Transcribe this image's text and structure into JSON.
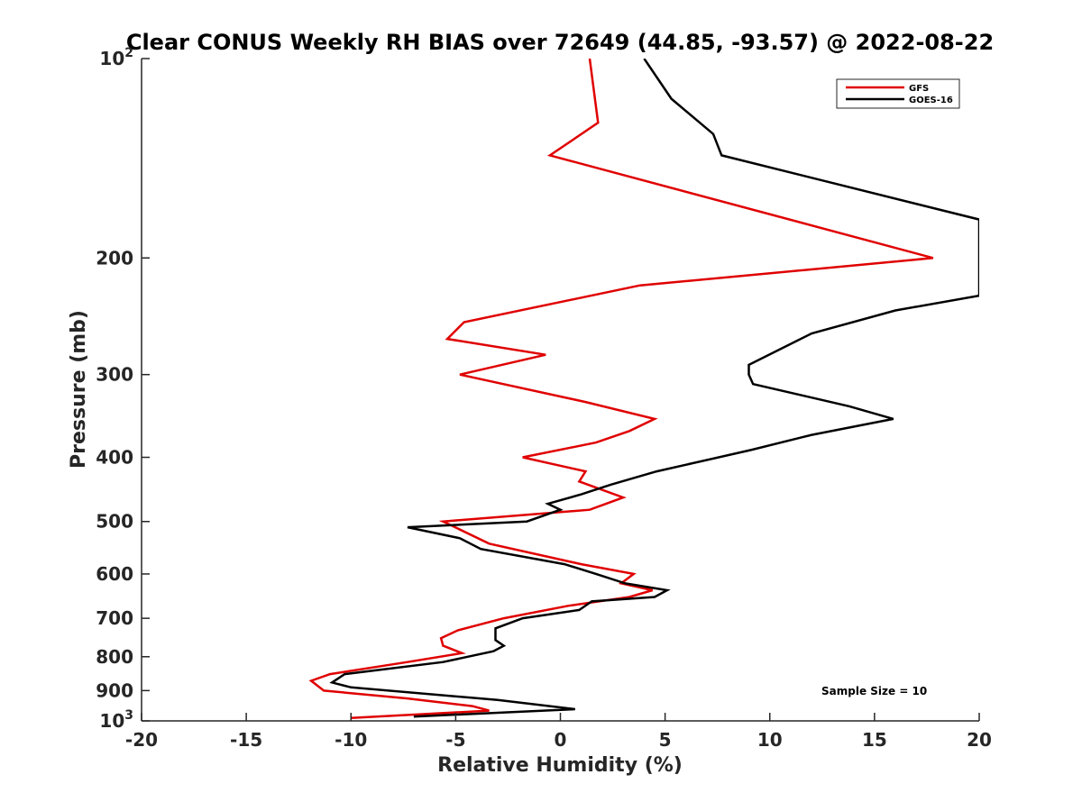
{
  "chart_data": {
    "type": "line",
    "title": "Clear CONUS Weekly RH BIAS over 72649 (44.85, -93.57) @ 2022-08-22",
    "xlabel": "Relative Humidity (%)",
    "ylabel": "Pressure (mb)",
    "xlim": [
      -20,
      20
    ],
    "ylim": [
      100,
      1000
    ],
    "y_scale": "log",
    "y_reversed": true,
    "grid": false,
    "legend_position": "top-right",
    "x_ticks": [
      "-20",
      "-15",
      "-10",
      "-5",
      "0",
      "5",
      "10",
      "15",
      "20"
    ],
    "y_ticks": [
      {
        "value": 100,
        "base": "10",
        "exp": "2"
      },
      {
        "value": 200,
        "label": "200"
      },
      {
        "value": 300,
        "label": "300"
      },
      {
        "value": 400,
        "label": "400"
      },
      {
        "value": 500,
        "label": "500"
      },
      {
        "value": 600,
        "label": "600"
      },
      {
        "value": 700,
        "label": "700"
      },
      {
        "value": 800,
        "label": "800"
      },
      {
        "value": 900,
        "label": "900"
      },
      {
        "value": 1000,
        "base": "10",
        "exp": "3"
      }
    ],
    "series": [
      {
        "name": "GFS",
        "color": "#e00000",
        "points": [
          [
            1.4,
            100
          ],
          [
            1.8,
            125
          ],
          [
            -0.5,
            140
          ],
          [
            17.8,
            200
          ],
          [
            3.8,
            220
          ],
          [
            -4.6,
            250
          ],
          [
            -5.4,
            265
          ],
          [
            -0.7,
            280
          ],
          [
            -4.8,
            300
          ],
          [
            1.2,
            330
          ],
          [
            4.5,
            350
          ],
          [
            3.3,
            365
          ],
          [
            1.7,
            380
          ],
          [
            -1.8,
            400
          ],
          [
            1.2,
            420
          ],
          [
            0.9,
            435
          ],
          [
            3.0,
            460
          ],
          [
            1.4,
            480
          ],
          [
            -5.6,
            500
          ],
          [
            -3.4,
            540
          ],
          [
            1.0,
            580
          ],
          [
            3.5,
            600
          ],
          [
            2.9,
            620
          ],
          [
            4.4,
            635
          ],
          [
            3.3,
            650
          ],
          [
            0.4,
            670
          ],
          [
            -2.7,
            700
          ],
          [
            -4.9,
            730
          ],
          [
            -5.7,
            750
          ],
          [
            -5.6,
            770
          ],
          [
            -4.7,
            790
          ],
          [
            -7.3,
            815
          ],
          [
            -11.0,
            850
          ],
          [
            -11.9,
            870
          ],
          [
            -11.3,
            900
          ],
          [
            -7.3,
            925
          ],
          [
            -4.2,
            950
          ],
          [
            -3.4,
            965
          ],
          [
            -10.0,
            990
          ]
        ]
      },
      {
        "name": "GOES-16",
        "color": "#000000",
        "points": [
          [
            4.0,
            100
          ],
          [
            5.3,
            115
          ],
          [
            7.3,
            130
          ],
          [
            7.7,
            140
          ],
          [
            20.0,
            175
          ],
          [
            20.0,
            228
          ],
          [
            16.0,
            240
          ],
          [
            12.0,
            260
          ],
          [
            9.0,
            290
          ],
          [
            9.0,
            300
          ],
          [
            9.2,
            310
          ],
          [
            13.8,
            335
          ],
          [
            15.9,
            350
          ],
          [
            12.0,
            370
          ],
          [
            9.1,
            390
          ],
          [
            4.6,
            420
          ],
          [
            2.4,
            440
          ],
          [
            1.0,
            455
          ],
          [
            -0.6,
            470
          ],
          [
            0,
            480
          ],
          [
            -1.6,
            500
          ],
          [
            -7.3,
            510
          ],
          [
            -4.8,
            530
          ],
          [
            -3.8,
            550
          ],
          [
            0.2,
            580
          ],
          [
            1.7,
            600
          ],
          [
            3.1,
            620
          ],
          [
            5.1,
            635
          ],
          [
            4.5,
            650
          ],
          [
            1.5,
            660
          ],
          [
            0.9,
            680
          ],
          [
            -1.8,
            700
          ],
          [
            -3.1,
            725
          ],
          [
            -3.1,
            755
          ],
          [
            -2.7,
            770
          ],
          [
            -3.2,
            785
          ],
          [
            -5.6,
            815
          ],
          [
            -10.3,
            850
          ],
          [
            -10.9,
            875
          ],
          [
            -10.0,
            890
          ],
          [
            -3.0,
            930
          ],
          [
            0.7,
            960
          ],
          [
            -7.0,
            985
          ]
        ]
      }
    ],
    "annotation": "Sample Size = 10"
  }
}
